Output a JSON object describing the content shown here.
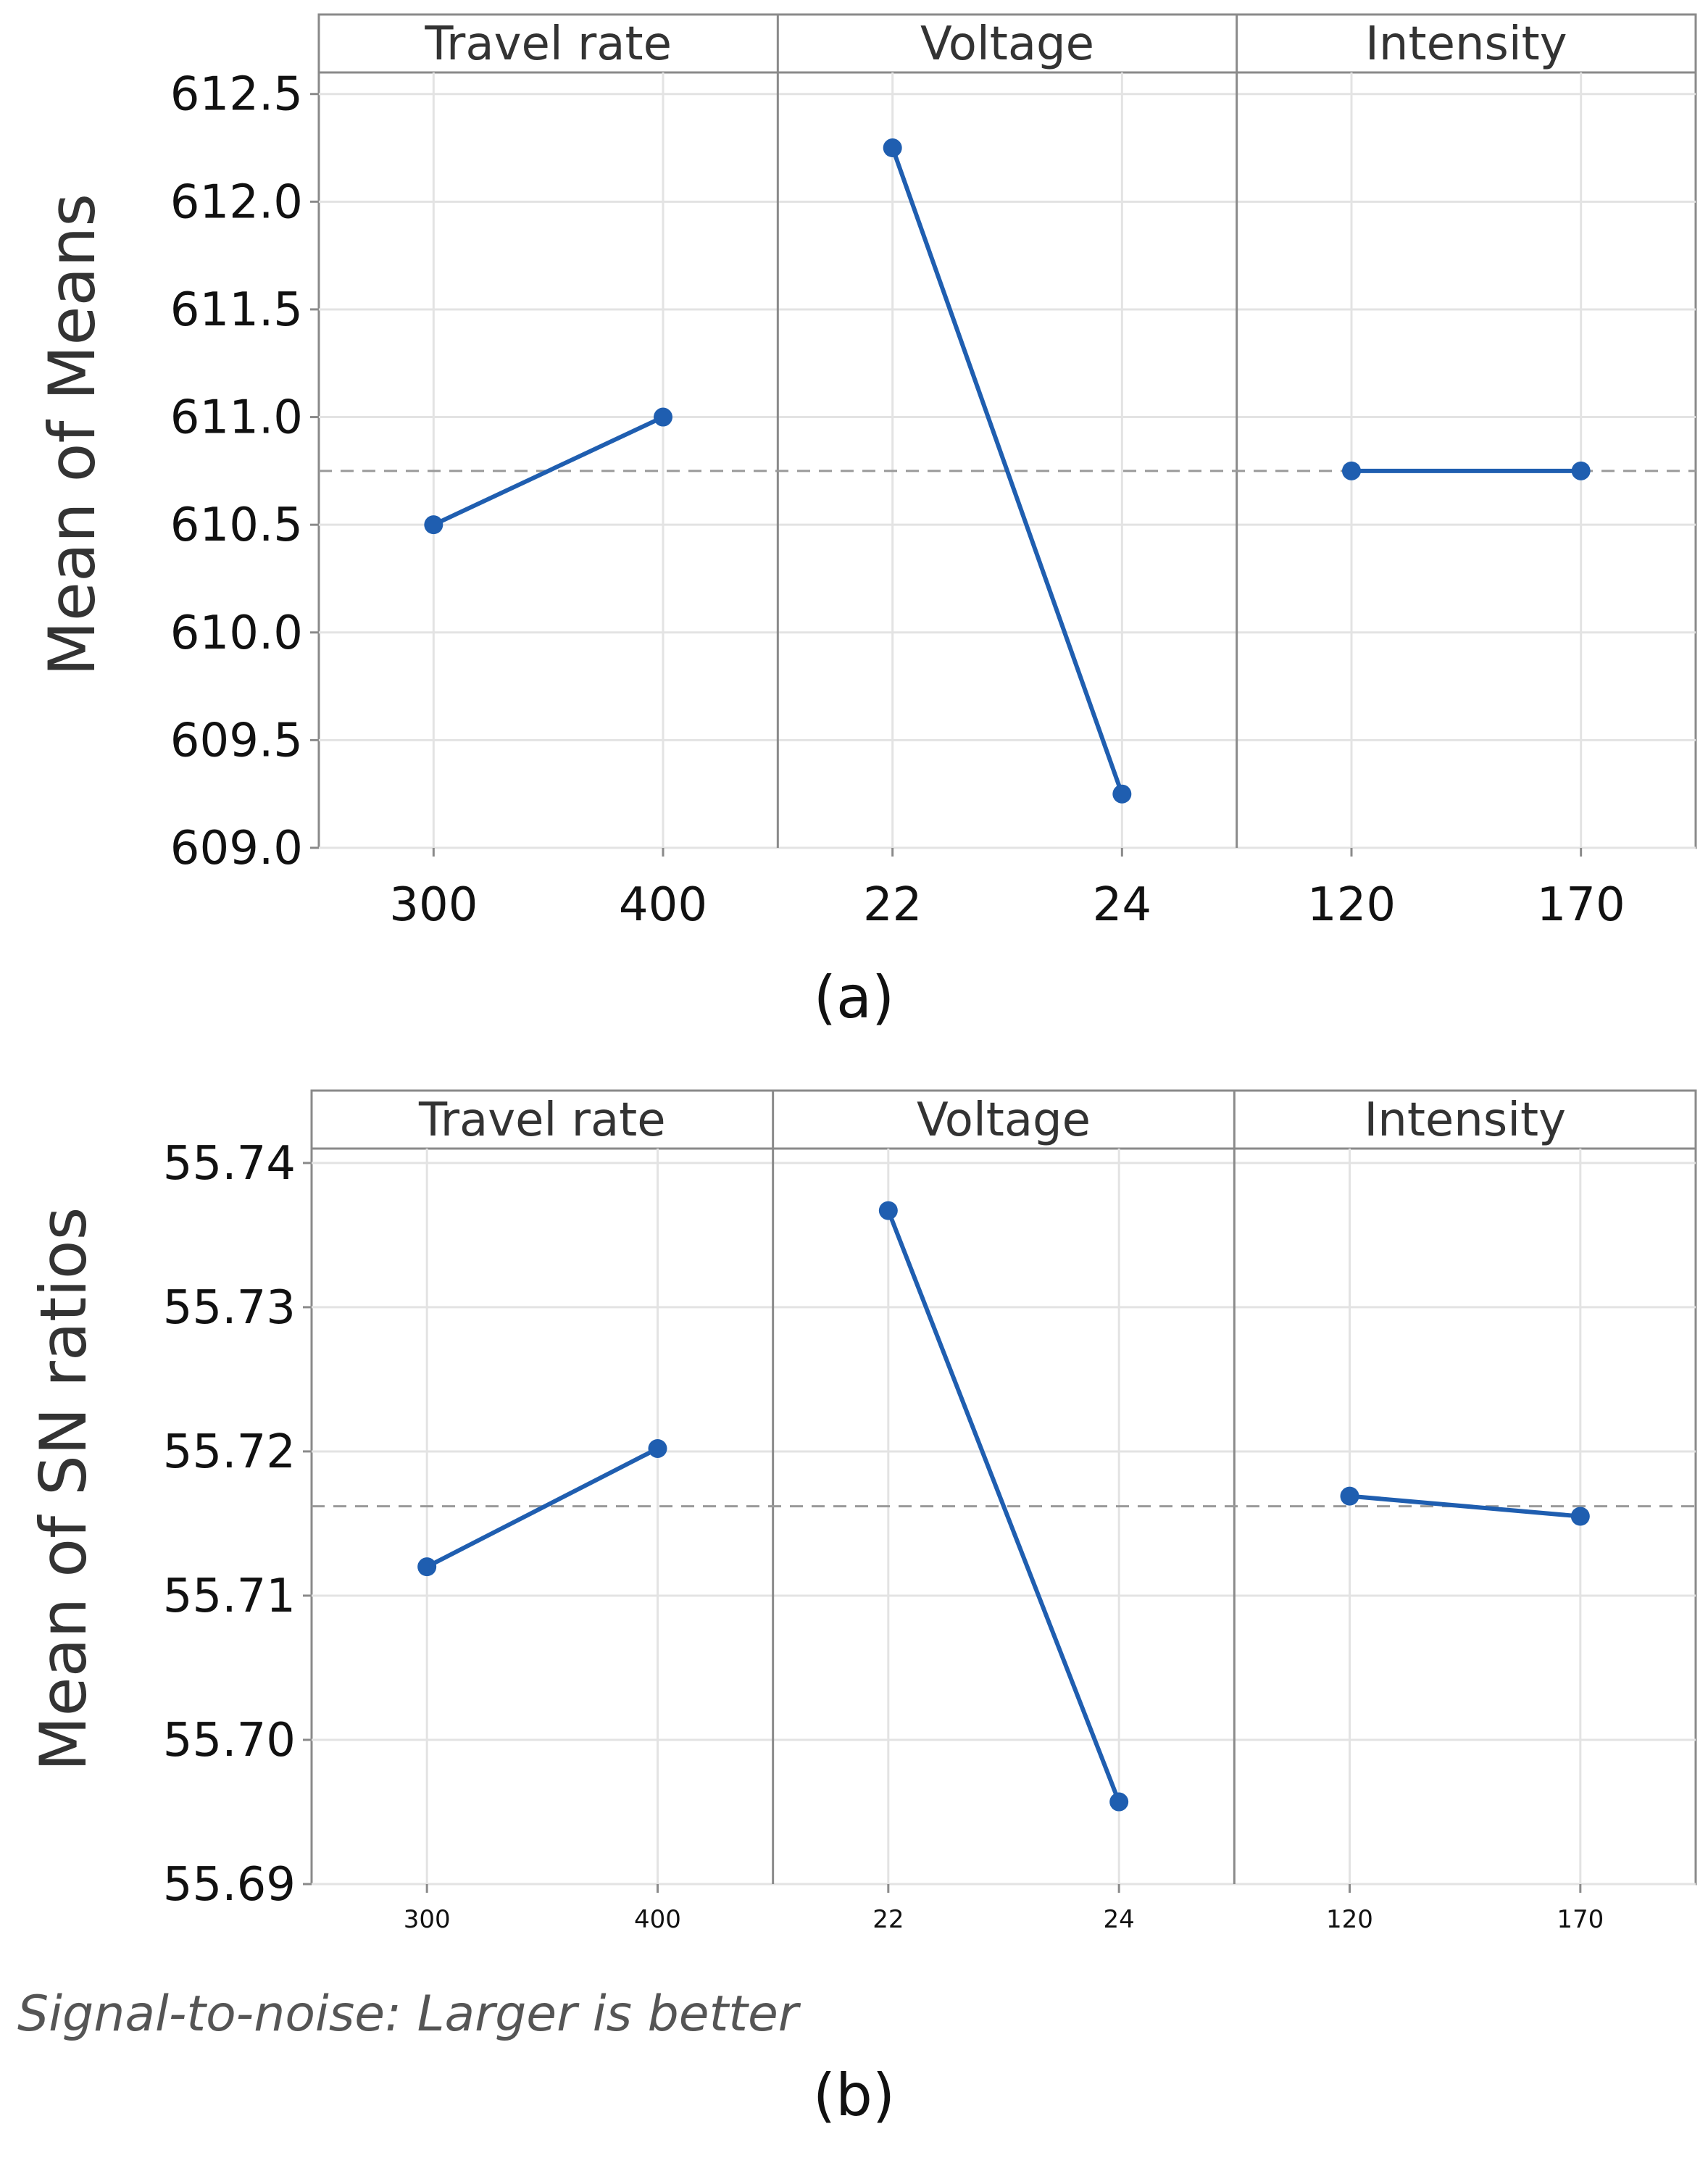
{
  "charts": [
    {
      "id": "means",
      "caption": "(a)",
      "ylabel": "Mean of Means",
      "ylim": [
        609.0,
        612.6
      ],
      "yticks": [
        609.0,
        609.5,
        610.0,
        610.5,
        611.0,
        611.5,
        612.0,
        612.5
      ],
      "ytick_labels": [
        "609.0",
        "609.5",
        "610.0",
        "610.5",
        "611.0",
        "611.5",
        "612.0",
        "612.5"
      ],
      "reference_mean": 610.75,
      "panels": [
        {
          "title": "Travel rate",
          "categories": [
            "300",
            "400"
          ],
          "values": [
            610.5,
            611.0
          ]
        },
        {
          "title": "Voltage",
          "categories": [
            "22",
            "24"
          ],
          "values": [
            612.25,
            609.25
          ]
        },
        {
          "title": "Intensity",
          "categories": [
            "120",
            "170"
          ],
          "values": [
            610.75,
            610.75
          ]
        }
      ]
    },
    {
      "id": "sn",
      "caption": "(b)",
      "ylabel": "Mean of SN ratios",
      "footnote": "Signal-to-noise: Larger is better",
      "ylim": [
        55.69,
        55.741
      ],
      "yticks": [
        55.69,
        55.7,
        55.71,
        55.72,
        55.73,
        55.74
      ],
      "ytick_labels": [
        "55.69",
        "55.70",
        "55.71",
        "55.72",
        "55.73",
        "55.74"
      ],
      "reference_mean": 55.7162,
      "panels": [
        {
          "title": "Travel rate",
          "categories": [
            "300",
            "400"
          ],
          "values": [
            55.712,
            55.7202
          ]
        },
        {
          "title": "Voltage",
          "categories": [
            "22",
            "24"
          ],
          "values": [
            55.7367,
            55.6957
          ]
        },
        {
          "title": "Intensity",
          "categories": [
            "120",
            "170"
          ],
          "values": [
            55.7169,
            55.7155
          ]
        }
      ]
    }
  ],
  "chart_data": [
    {
      "type": "line",
      "title": "",
      "xlabel": "",
      "ylabel": "Mean of Means",
      "ylim": [
        609.0,
        612.6
      ],
      "series": [
        {
          "name": "Travel rate",
          "x": [
            "300",
            "400"
          ],
          "values": [
            610.5,
            611.0
          ]
        },
        {
          "name": "Voltage",
          "x": [
            "22",
            "24"
          ],
          "values": [
            612.25,
            609.25
          ]
        },
        {
          "name": "Intensity",
          "x": [
            "120",
            "170"
          ],
          "values": [
            610.75,
            610.75
          ]
        }
      ],
      "reference_line": 610.75
    },
    {
      "type": "line",
      "title": "",
      "xlabel": "",
      "ylabel": "Mean of SN ratios",
      "ylim": [
        55.69,
        55.741
      ],
      "series": [
        {
          "name": "Travel rate",
          "x": [
            "300",
            "400"
          ],
          "values": [
            55.712,
            55.7202
          ]
        },
        {
          "name": "Voltage",
          "x": [
            "22",
            "24"
          ],
          "values": [
            55.7367,
            55.6957
          ]
        },
        {
          "name": "Intensity",
          "x": [
            "120",
            "170"
          ],
          "values": [
            55.7169,
            55.7155
          ]
        }
      ],
      "reference_line": 55.7162
    }
  ],
  "colors": {
    "series": "#1f5eb0",
    "frame": "#8a8a8a",
    "grid": "#e3e3e3",
    "reference": "#9a9a9a"
  }
}
